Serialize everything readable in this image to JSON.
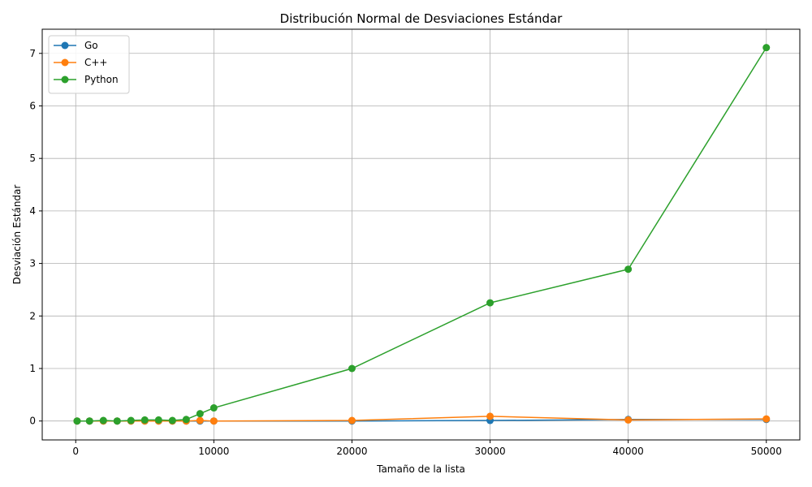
{
  "chart_data": {
    "type": "line",
    "title": "Distribución Normal de Desviaciones Estándar",
    "xlabel": "Tamaño de la lista",
    "ylabel": "Desviación Estándar",
    "xlim": [
      -2425,
      52425
    ],
    "ylim": [
      -0.36,
      7.46
    ],
    "xticks": [
      0,
      10000,
      20000,
      30000,
      40000,
      50000
    ],
    "yticks": [
      0,
      1,
      2,
      3,
      4,
      5,
      6,
      7
    ],
    "grid": true,
    "legend_position": "top-left",
    "marker": "circle",
    "series": [
      {
        "name": "Go",
        "color": "#1f77b4",
        "x": [
          100,
          1000,
          2000,
          3000,
          4000,
          5000,
          6000,
          7000,
          8000,
          9000,
          10000,
          20000,
          30000,
          40000,
          50000
        ],
        "y": [
          0.0,
          0.0,
          0.0,
          0.0,
          0.0,
          0.0,
          0.0,
          0.0,
          0.0,
          0.0,
          0.0,
          0.0,
          0.01,
          0.03,
          0.03
        ]
      },
      {
        "name": "C++",
        "color": "#ff7f0e",
        "x": [
          100,
          1000,
          2000,
          3000,
          4000,
          5000,
          6000,
          7000,
          8000,
          9000,
          10000,
          20000,
          30000,
          40000,
          50000
        ],
        "y": [
          0.0,
          0.0,
          0.0,
          0.0,
          0.0,
          0.0,
          0.0,
          0.0,
          0.0,
          0.01,
          0.0,
          0.01,
          0.09,
          0.02,
          0.04
        ]
      },
      {
        "name": "Python",
        "color": "#2ca02c",
        "x": [
          100,
          1000,
          2000,
          3000,
          4000,
          5000,
          6000,
          7000,
          8000,
          9000,
          10000,
          20000,
          30000,
          40000,
          50000
        ],
        "y": [
          0.0,
          0.0,
          0.01,
          0.0,
          0.01,
          0.02,
          0.02,
          0.01,
          0.03,
          0.14,
          0.25,
          1.0,
          2.25,
          2.89,
          7.11
        ]
      }
    ]
  }
}
